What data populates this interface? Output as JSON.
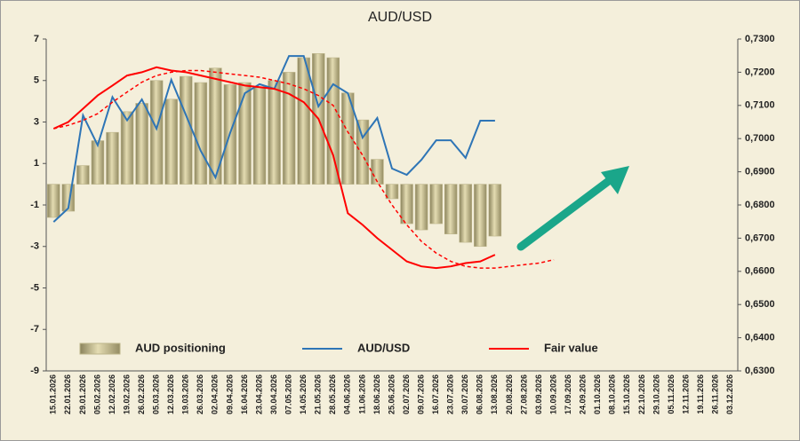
{
  "chart_data": {
    "type": "bar",
    "title": "AUD/USD",
    "categories": [
      "15.01.2026",
      "22.01.2026",
      "29.01.2026",
      "05.02.2026",
      "12.02.2026",
      "19.02.2026",
      "26.02.2026",
      "05.03.2026",
      "12.03.2026",
      "19.03.2026",
      "26.03.2026",
      "02.04.2026",
      "09.04.2026",
      "16.04.2026",
      "23.04.2026",
      "30.04.2026",
      "07.05.2026",
      "14.05.2026",
      "21.05.2026",
      "28.05.2026",
      "04.06.2026",
      "11.06.2026",
      "18.06.2026",
      "25.06.2026",
      "02.07.2026",
      "09.07.2026",
      "16.07.2026",
      "23.07.2026",
      "30.07.2026",
      "06.08.2026",
      "13.08.2026",
      "20.08.2026",
      "27.08.2026",
      "03.09.2026",
      "10.09.2026",
      "17.09.2026",
      "24.09.2026",
      "01.10.2026",
      "08.10.2026",
      "15.10.2026",
      "22.10.2026",
      "29.10.2026",
      "05.11.2026",
      "12.11.2026",
      "19.11.2026",
      "26.11.2026",
      "03.12.2026"
    ],
    "series": [
      {
        "name": "AUD positioning",
        "type": "bar",
        "color": "#bdb58a",
        "values": [
          -1.6,
          -1.3,
          0.9,
          2.1,
          2.5,
          3.5,
          3.9,
          5.0,
          4.1,
          5.2,
          4.9,
          5.6,
          4.8,
          4.9,
          4.7,
          5.0,
          5.4,
          6.1,
          6.3,
          6.1,
          4.4,
          3.1,
          1.2,
          -0.7,
          -1.9,
          -2.2,
          -1.9,
          -2.4,
          -2.8,
          -3.0,
          -2.5,
          null,
          null,
          null,
          null,
          null,
          null,
          null,
          null,
          null,
          null,
          null,
          null,
          null,
          null,
          null,
          null
        ]
      },
      {
        "name": "AUD/USD",
        "type": "line",
        "axis": "y2",
        "color": "#2e75b6",
        "values": [
          0.6749,
          0.679,
          0.707,
          0.698,
          0.7125,
          0.7055,
          0.7118,
          0.703,
          0.7177,
          0.707,
          0.6963,
          0.6883,
          0.7017,
          0.7137,
          0.7164,
          0.715,
          0.7249,
          0.7249,
          0.7097,
          0.7164,
          0.7137,
          0.7003,
          0.7062,
          0.691,
          0.6891,
          0.6936,
          0.6995,
          0.6995,
          0.6942,
          0.7054,
          0.7054,
          null,
          null,
          null,
          null,
          null,
          null,
          null,
          null,
          null,
          null,
          null,
          null,
          null,
          null,
          null,
          null
        ]
      },
      {
        "name": "Fair value",
        "type": "line",
        "axis": "y2",
        "color": "#ff0000",
        "values": [
          0.703,
          0.705,
          0.709,
          0.713,
          0.716,
          0.719,
          0.72,
          0.7215,
          0.7205,
          0.72,
          0.719,
          0.718,
          0.717,
          0.716,
          0.7155,
          0.715,
          0.7135,
          0.711,
          0.706,
          0.695,
          0.6775,
          0.674,
          0.67,
          0.6665,
          0.663,
          0.6615,
          0.661,
          0.6615,
          0.6625,
          0.663,
          0.665,
          null,
          null,
          null,
          null,
          null,
          null,
          null,
          null,
          null,
          null,
          null,
          null,
          null,
          null,
          null,
          null
        ]
      },
      {
        "type": "line",
        "axis": "y2",
        "color": "#ff0000",
        "dash": true,
        "values": [
          0.703,
          0.704,
          0.7055,
          0.7075,
          0.711,
          0.714,
          0.717,
          0.719,
          0.72,
          0.7205,
          0.7205,
          0.72,
          0.7195,
          0.719,
          0.7185,
          0.7175,
          0.7165,
          0.715,
          0.713,
          0.71,
          0.702,
          0.695,
          0.687,
          0.68,
          0.674,
          0.669,
          0.6655,
          0.663,
          0.6615,
          0.661,
          0.661,
          0.6615,
          0.662,
          0.6625,
          0.6635,
          null,
          null,
          null,
          null,
          null,
          null,
          null,
          null,
          null,
          null,
          null,
          null
        ]
      }
    ],
    "ylim": [
      -9,
      7
    ],
    "yticks": [
      7,
      5,
      3,
      1,
      -1,
      -3,
      -5,
      -7,
      -9
    ],
    "y2lim": [
      0.63,
      0.73
    ],
    "y2ticks": [
      {
        "value": 0.73,
        "label": "0,7300"
      },
      {
        "value": 0.72,
        "label": "0,7200"
      },
      {
        "value": 0.71,
        "label": "0,7100"
      },
      {
        "value": 0.7,
        "label": "0,7000"
      },
      {
        "value": 0.69,
        "label": "0,6900"
      },
      {
        "value": 0.68,
        "label": "0,6800"
      },
      {
        "value": 0.67,
        "label": "0,6700"
      },
      {
        "value": 0.66,
        "label": "0,6600"
      },
      {
        "value": 0.65,
        "label": "0,6500"
      },
      {
        "value": 0.64,
        "label": "0,6400"
      },
      {
        "value": 0.63,
        "label": "0,6300"
      }
    ],
    "grid": false
  }
}
